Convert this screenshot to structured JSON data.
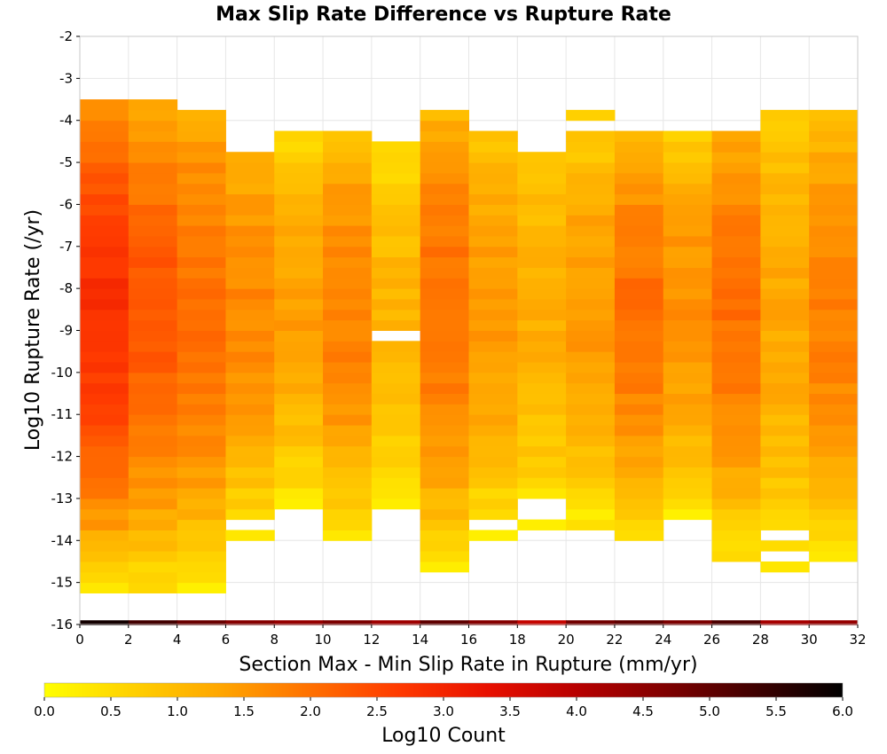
{
  "chart_data": {
    "type": "heatmap",
    "title": "Max Slip Rate Difference vs Rupture Rate",
    "xlabel": "Section Max - Min Slip Rate in Rupture (mm/yr)",
    "ylabel": "Log10 Rupture Rate (/yr)",
    "xlim": [
      0,
      32
    ],
    "ylim": [
      -16,
      -2
    ],
    "x_ticks": [
      "0",
      "2",
      "4",
      "6",
      "8",
      "10",
      "12",
      "14",
      "16",
      "18",
      "20",
      "22",
      "24",
      "26",
      "28",
      "30",
      "32"
    ],
    "y_ticks": [
      "-2",
      "-3",
      "-4",
      "-5",
      "-6",
      "-7",
      "-8",
      "-9",
      "-10",
      "-11",
      "-12",
      "-13",
      "-14",
      "-15",
      "-16"
    ],
    "x_bin_width": 2,
    "y_bin_height": 0.25,
    "x_bins": [
      1,
      3,
      5,
      7,
      9,
      11,
      13,
      15,
      17,
      19,
      21,
      23,
      25,
      27,
      29,
      31
    ],
    "column_y_ranges": [
      [
        -15.25,
        -3.5
      ],
      [
        -15.25,
        -3.5
      ],
      [
        -15.25,
        -3.75
      ],
      [
        -14.0,
        -4.75
      ],
      [
        -13.25,
        -4.25
      ],
      [
        -14.0,
        -4.25
      ],
      [
        -13.25,
        -4.5
      ],
      [
        -14.75,
        -3.75
      ],
      [
        -14.0,
        -4.25
      ],
      [
        -13.75,
        -4.75
      ],
      [
        -13.75,
        -3.75
      ],
      [
        -14.0,
        -4.25
      ],
      [
        -13.5,
        -4.25
      ],
      [
        -14.5,
        -4.25
      ],
      [
        -14.75,
        -3.75
      ],
      [
        -14.5,
        -3.75
      ]
    ],
    "column_peak_log10_count": [
      2.8,
      2.3,
      2.0,
      1.7,
      1.4,
      1.8,
      1.1,
      2.0,
      1.5,
      1.2,
      1.5,
      2.0,
      1.6,
      2.0,
      1.3,
      1.8
    ],
    "gaps": [
      {
        "x_bin": 6,
        "y_range": [
          -9.25,
          -9.0
        ]
      },
      {
        "x_bin": 9,
        "y_range": [
          -13.5,
          -13.0
        ]
      },
      {
        "x_bin": 10,
        "y_range": [
          -4.25,
          -4.0
        ]
      },
      {
        "x_bin": 14,
        "y_range": [
          -14.0,
          -13.75
        ]
      },
      {
        "x_bin": 14,
        "y_range": [
          -14.5,
          -14.25
        ]
      },
      {
        "x_bin": 3,
        "y_range": [
          -13.75,
          -13.5
        ]
      },
      {
        "x_bin": 8,
        "y_range": [
          -13.75,
          -13.5
        ]
      }
    ],
    "marginal_bar_log10_count": [
      5.8,
      5.3,
      4.9,
      4.6,
      4.4,
      4.7,
      4.3,
      5.0,
      4.6,
      3.8,
      4.8,
      5.0,
      4.7,
      5.2,
      4.2,
      4.4
    ],
    "colorbar": {
      "label": "Log10 Count",
      "min": 0.0,
      "max": 6.0,
      "ticks": [
        "0.0",
        "0.5",
        "1.0",
        "1.5",
        "2.0",
        "2.5",
        "3.0",
        "3.5",
        "4.0",
        "4.5",
        "5.0",
        "5.5",
        "6.0"
      ],
      "colors": [
        "#ffff00",
        "#ffd000",
        "#ffa500",
        "#ff7000",
        "#ff3a00",
        "#e81000",
        "#b80000",
        "#800000",
        "#400000",
        "#000000"
      ]
    },
    "grid": true,
    "legend": "bottom"
  }
}
